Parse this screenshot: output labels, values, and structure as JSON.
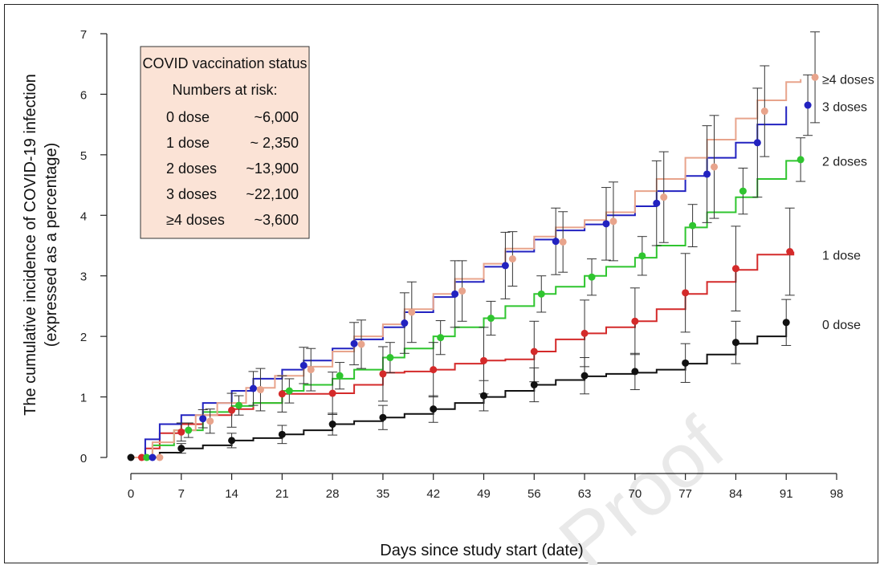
{
  "chart_data": {
    "type": "line",
    "title": "",
    "xlabel": "Days since study start (date)",
    "ylabel_line1": "The cumulative incidence of COVID-19 infection",
    "ylabel_line2": "(expressed as a percentage)",
    "xlim": [
      0,
      98
    ],
    "ylim": [
      0,
      7
    ],
    "x_ticks": [
      0,
      7,
      14,
      21,
      28,
      35,
      42,
      49,
      56,
      63,
      70,
      77,
      84,
      91,
      98
    ],
    "y_ticks": [
      0,
      1,
      2,
      3,
      4,
      5,
      6,
      7
    ],
    "x_tick_labels": [
      "0",
      "7",
      "14",
      "21",
      "28",
      "35",
      "42",
      "49",
      "56",
      "63",
      "70",
      "77",
      "84",
      "91",
      "98"
    ],
    "y_tick_labels": [
      "0",
      "1",
      "2",
      "3",
      "4",
      "5",
      "6",
      "7"
    ],
    "grid": false,
    "watermark": "Proof",
    "legend": {
      "placement": "top-left",
      "title": "COVID vaccination status",
      "subtitle": "Numbers at risk:",
      "background": "#fbe3d6",
      "rows": [
        {
          "group": "0 dose",
          "count": "~6,000"
        },
        {
          "group": "1 dose",
          "count": "~ 2,350"
        },
        {
          "group": "2 doses",
          "count": "~13,900"
        },
        {
          "group": "3 doses",
          "count": "~22,100"
        },
        {
          "group": "≥4 doses",
          "count": "~3,600"
        }
      ]
    },
    "series": [
      {
        "name": "0 dose",
        "color": "#111111",
        "line": [
          [
            0,
            0
          ],
          [
            4,
            0.08
          ],
          [
            7,
            0.15
          ],
          [
            10,
            0.2
          ],
          [
            14,
            0.28
          ],
          [
            17,
            0.32
          ],
          [
            21,
            0.38
          ],
          [
            24,
            0.45
          ],
          [
            28,
            0.55
          ],
          [
            31,
            0.6
          ],
          [
            35,
            0.66
          ],
          [
            38,
            0.72
          ],
          [
            42,
            0.8
          ],
          [
            45,
            0.9
          ],
          [
            49,
            1.0
          ],
          [
            52,
            1.1
          ],
          [
            56,
            1.2
          ],
          [
            59,
            1.28
          ],
          [
            63,
            1.34
          ],
          [
            66,
            1.38
          ],
          [
            70,
            1.4
          ],
          [
            73,
            1.45
          ],
          [
            77,
            1.55
          ],
          [
            80,
            1.7
          ],
          [
            84,
            1.88
          ],
          [
            87,
            2.0
          ],
          [
            91,
            2.18
          ]
        ],
        "points": [
          [
            0,
            0,
            0.02
          ],
          [
            7,
            0.15,
            0.08
          ],
          [
            14,
            0.28,
            0.12
          ],
          [
            21,
            0.38,
            0.15
          ],
          [
            28,
            0.55,
            0.18
          ],
          [
            35,
            0.66,
            0.2
          ],
          [
            42,
            0.8,
            0.22
          ],
          [
            49,
            1.02,
            0.25
          ],
          [
            56,
            1.2,
            0.28
          ],
          [
            63,
            1.35,
            0.3
          ],
          [
            70,
            1.42,
            0.3
          ],
          [
            77,
            1.56,
            0.32
          ],
          [
            84,
            1.9,
            0.35
          ],
          [
            91,
            2.23,
            0.38
          ]
        ]
      },
      {
        "name": "1 dose",
        "color": "#d42a2a",
        "line": [
          [
            0,
            0
          ],
          [
            2,
            0.15
          ],
          [
            4,
            0.4
          ],
          [
            7,
            0.55
          ],
          [
            10,
            0.7
          ],
          [
            14,
            0.8
          ],
          [
            17,
            0.9
          ],
          [
            21,
            1.05
          ],
          [
            24,
            1.05
          ],
          [
            28,
            1.06
          ],
          [
            31,
            1.2
          ],
          [
            35,
            1.4
          ],
          [
            38,
            1.42
          ],
          [
            42,
            1.45
          ],
          [
            45,
            1.55
          ],
          [
            49,
            1.6
          ],
          [
            52,
            1.62
          ],
          [
            56,
            1.75
          ],
          [
            59,
            1.95
          ],
          [
            63,
            2.05
          ],
          [
            66,
            2.15
          ],
          [
            70,
            2.25
          ],
          [
            73,
            2.45
          ],
          [
            77,
            2.7
          ],
          [
            80,
            2.9
          ],
          [
            84,
            3.1
          ],
          [
            87,
            3.35
          ],
          [
            92,
            3.4
          ]
        ],
        "points": [
          [
            1.5,
            0,
            0.02
          ],
          [
            7,
            0.42,
            0.15
          ],
          [
            14,
            0.78,
            0.28
          ],
          [
            21,
            1.05,
            0.3
          ],
          [
            28,
            1.06,
            0.35
          ],
          [
            35,
            1.38,
            0.45
          ],
          [
            42,
            1.45,
            0.45
          ],
          [
            49,
            1.6,
            0.55
          ],
          [
            56,
            1.75,
            0.5
          ],
          [
            63,
            2.05,
            0.55
          ],
          [
            70,
            2.25,
            0.55
          ],
          [
            77,
            2.72,
            0.65
          ],
          [
            84,
            3.12,
            0.7
          ],
          [
            91.5,
            3.4,
            0.72
          ]
        ]
      },
      {
        "name": "2 doses",
        "color": "#2fc52f",
        "line": [
          [
            0,
            0
          ],
          [
            3,
            0.2
          ],
          [
            6,
            0.45
          ],
          [
            10,
            0.75
          ],
          [
            14,
            0.85
          ],
          [
            17,
            0.9
          ],
          [
            21,
            1.1
          ],
          [
            24,
            1.2
          ],
          [
            28,
            1.3
          ],
          [
            31,
            1.45
          ],
          [
            35,
            1.65
          ],
          [
            38,
            1.8
          ],
          [
            42,
            2.0
          ],
          [
            45,
            2.15
          ],
          [
            49,
            2.3
          ],
          [
            52,
            2.5
          ],
          [
            56,
            2.7
          ],
          [
            59,
            2.82
          ],
          [
            63,
            3.0
          ],
          [
            66,
            3.15
          ],
          [
            70,
            3.3
          ],
          [
            73,
            3.5
          ],
          [
            77,
            3.8
          ],
          [
            80,
            4.05
          ],
          [
            84,
            4.3
          ],
          [
            87,
            4.6
          ],
          [
            91,
            4.9
          ],
          [
            93,
            4.92
          ]
        ],
        "points": [
          [
            2.2,
            0,
            0.02
          ],
          [
            8,
            0.45,
            0.12
          ],
          [
            15,
            0.86,
            0.16
          ],
          [
            22,
            1.1,
            0.2
          ],
          [
            29,
            1.35,
            0.22
          ],
          [
            36,
            1.65,
            0.25
          ],
          [
            43,
            1.98,
            0.28
          ],
          [
            50,
            2.3,
            0.28
          ],
          [
            57,
            2.7,
            0.3
          ],
          [
            64,
            2.98,
            0.3
          ],
          [
            71,
            3.33,
            0.32
          ],
          [
            78,
            3.83,
            0.35
          ],
          [
            85,
            4.4,
            0.38
          ],
          [
            93,
            4.92,
            0.36
          ]
        ]
      },
      {
        "name": "3 doses",
        "color": "#2222c0",
        "line": [
          [
            0,
            0
          ],
          [
            2,
            0.3
          ],
          [
            4,
            0.55
          ],
          [
            7,
            0.7
          ],
          [
            10,
            0.9
          ],
          [
            14,
            1.1
          ],
          [
            17,
            1.3
          ],
          [
            21,
            1.45
          ],
          [
            24,
            1.6
          ],
          [
            28,
            1.8
          ],
          [
            31,
            1.95
          ],
          [
            35,
            2.15
          ],
          [
            38,
            2.4
          ],
          [
            42,
            2.65
          ],
          [
            45,
            2.9
          ],
          [
            49,
            3.15
          ],
          [
            52,
            3.4
          ],
          [
            56,
            3.6
          ],
          [
            59,
            3.75
          ],
          [
            63,
            3.85
          ],
          [
            66,
            4.0
          ],
          [
            70,
            4.15
          ],
          [
            73,
            4.4
          ],
          [
            77,
            4.65
          ],
          [
            80,
            4.95
          ],
          [
            84,
            5.2
          ],
          [
            87,
            5.5
          ],
          [
            91,
            5.8
          ]
        ],
        "points": [
          [
            3,
            0,
            0.02
          ],
          [
            10,
            0.64,
            0.15
          ],
          [
            17,
            1.14,
            0.28
          ],
          [
            24,
            1.52,
            0.3
          ],
          [
            31,
            1.88,
            0.35
          ],
          [
            38,
            2.22,
            0.5
          ],
          [
            45,
            2.7,
            0.55
          ],
          [
            52,
            3.17,
            0.55
          ],
          [
            59,
            3.57,
            0.55
          ],
          [
            66,
            3.86,
            0.6
          ],
          [
            73,
            4.2,
            0.7
          ],
          [
            80,
            4.68,
            0.8
          ],
          [
            87,
            5.2,
            0.9
          ],
          [
            94,
            5.82,
            0.5
          ]
        ]
      },
      {
        "name": "≥4 doses",
        "color": "#e8a48c",
        "line": [
          [
            0,
            0
          ],
          [
            3,
            0.25
          ],
          [
            6,
            0.45
          ],
          [
            9,
            0.7
          ],
          [
            12,
            0.9
          ],
          [
            16,
            1.15
          ],
          [
            20,
            1.35
          ],
          [
            24,
            1.5
          ],
          [
            28,
            1.75
          ],
          [
            31,
            2.0
          ],
          [
            35,
            2.2
          ],
          [
            38,
            2.45
          ],
          [
            42,
            2.7
          ],
          [
            45,
            2.95
          ],
          [
            49,
            3.2
          ],
          [
            52,
            3.45
          ],
          [
            56,
            3.65
          ],
          [
            59,
            3.8
          ],
          [
            63,
            3.92
          ],
          [
            66,
            4.05
          ],
          [
            70,
            4.4
          ],
          [
            73,
            4.6
          ],
          [
            77,
            4.95
          ],
          [
            80,
            5.25
          ],
          [
            84,
            5.6
          ],
          [
            87,
            5.9
          ],
          [
            91,
            6.2
          ],
          [
            93,
            6.25
          ]
        ],
        "points": [
          [
            4,
            0,
            0.02
          ],
          [
            11,
            0.6,
            0.2
          ],
          [
            18,
            1.12,
            0.35
          ],
          [
            25,
            1.45,
            0.35
          ],
          [
            32,
            1.87,
            0.4
          ],
          [
            39,
            2.4,
            0.5
          ],
          [
            46,
            2.75,
            0.5
          ],
          [
            53,
            3.28,
            0.45
          ],
          [
            60,
            3.56,
            0.5
          ],
          [
            67,
            3.9,
            0.65
          ],
          [
            74,
            4.3,
            0.75
          ],
          [
            81,
            4.8,
            0.85
          ],
          [
            88,
            5.72,
            0.75
          ],
          [
            95,
            6.28,
            0.75
          ]
        ]
      }
    ]
  }
}
